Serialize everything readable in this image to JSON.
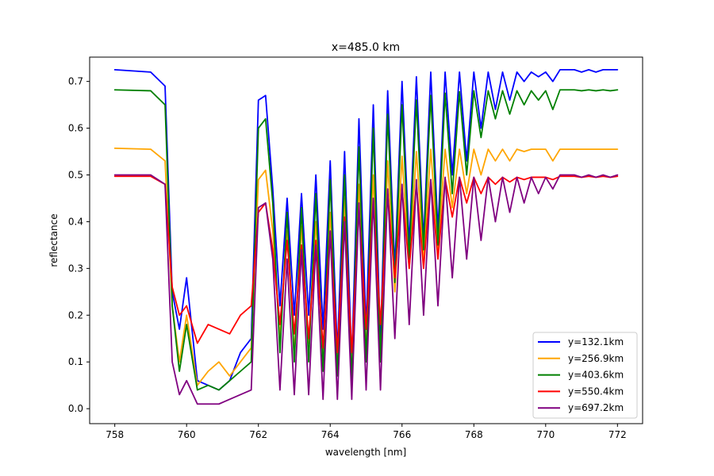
{
  "chart_data": {
    "type": "line",
    "title": "x=485.0 km",
    "xlabel": "wavelength [nm]",
    "ylabel": "reflectance",
    "xlim": [
      757.3,
      772.7
    ],
    "ylim": [
      -0.032,
      0.752
    ],
    "xticks": [
      758,
      760,
      762,
      764,
      766,
      768,
      770,
      772
    ],
    "xtick_labels": [
      "758",
      "760",
      "762",
      "764",
      "766",
      "768",
      "770",
      "772"
    ],
    "yticks": [
      0.0,
      0.1,
      0.2,
      0.3,
      0.4,
      0.5,
      0.6,
      0.7
    ],
    "ytick_labels": [
      "0.0",
      "0.1",
      "0.2",
      "0.3",
      "0.4",
      "0.5",
      "0.6",
      "0.7"
    ],
    "grid": false,
    "legend_position": "lower-right",
    "x": [
      758.0,
      759.0,
      759.4,
      759.6,
      759.8,
      760.0,
      760.3,
      760.6,
      760.9,
      761.2,
      761.5,
      761.8,
      762.0,
      762.2,
      762.4,
      762.6,
      762.8,
      763.0,
      763.2,
      763.4,
      763.6,
      763.8,
      764.0,
      764.2,
      764.4,
      764.6,
      764.8,
      765.0,
      765.2,
      765.4,
      765.6,
      765.8,
      766.0,
      766.2,
      766.4,
      766.6,
      766.8,
      767.0,
      767.2,
      767.4,
      767.6,
      767.8,
      768.0,
      768.2,
      768.4,
      768.6,
      768.8,
      769.0,
      769.2,
      769.4,
      769.6,
      769.8,
      770.0,
      770.2,
      770.4,
      770.6,
      770.8,
      771.0,
      771.2,
      771.4,
      771.6,
      771.8,
      772.0
    ],
    "series": [
      {
        "name": "y=132.1km",
        "color": "#0000ff",
        "values": [
          0.725,
          0.72,
          0.69,
          0.25,
          0.17,
          0.28,
          0.06,
          0.05,
          0.04,
          0.06,
          0.12,
          0.15,
          0.66,
          0.67,
          0.47,
          0.22,
          0.45,
          0.2,
          0.46,
          0.2,
          0.5,
          0.17,
          0.53,
          0.12,
          0.55,
          0.1,
          0.62,
          0.17,
          0.65,
          0.14,
          0.68,
          0.3,
          0.7,
          0.35,
          0.71,
          0.36,
          0.72,
          0.38,
          0.72,
          0.5,
          0.72,
          0.53,
          0.72,
          0.6,
          0.72,
          0.64,
          0.72,
          0.66,
          0.72,
          0.7,
          0.72,
          0.71,
          0.72,
          0.7,
          0.725,
          0.725,
          0.725,
          0.72,
          0.725,
          0.72,
          0.725,
          0.725,
          0.725
        ]
      },
      {
        "name": "y=256.9km",
        "color": "#ffa500",
        "values": [
          0.557,
          0.555,
          0.53,
          0.22,
          0.1,
          0.2,
          0.05,
          0.08,
          0.1,
          0.07,
          0.1,
          0.13,
          0.49,
          0.51,
          0.38,
          0.15,
          0.38,
          0.12,
          0.39,
          0.14,
          0.4,
          0.12,
          0.42,
          0.1,
          0.45,
          0.08,
          0.48,
          0.12,
          0.5,
          0.1,
          0.53,
          0.25,
          0.54,
          0.3,
          0.55,
          0.32,
          0.555,
          0.34,
          0.555,
          0.43,
          0.555,
          0.46,
          0.555,
          0.5,
          0.555,
          0.53,
          0.555,
          0.53,
          0.555,
          0.55,
          0.555,
          0.555,
          0.555,
          0.53,
          0.555,
          0.555,
          0.555,
          0.555,
          0.555,
          0.555,
          0.555,
          0.555,
          0.555
        ]
      },
      {
        "name": "y=403.6km",
        "color": "#008000",
        "values": [
          0.682,
          0.68,
          0.65,
          0.22,
          0.08,
          0.18,
          0.04,
          0.05,
          0.04,
          0.06,
          0.08,
          0.1,
          0.6,
          0.62,
          0.44,
          0.12,
          0.42,
          0.1,
          0.43,
          0.1,
          0.46,
          0.08,
          0.49,
          0.07,
          0.5,
          0.06,
          0.56,
          0.1,
          0.6,
          0.1,
          0.63,
          0.27,
          0.65,
          0.32,
          0.66,
          0.34,
          0.67,
          0.35,
          0.675,
          0.46,
          0.678,
          0.5,
          0.68,
          0.58,
          0.68,
          0.62,
          0.68,
          0.63,
          0.68,
          0.65,
          0.68,
          0.66,
          0.68,
          0.64,
          0.682,
          0.682,
          0.682,
          0.68,
          0.682,
          0.68,
          0.682,
          0.68,
          0.682
        ]
      },
      {
        "name": "y=550.4km",
        "color": "#ff0000",
        "values": [
          0.497,
          0.497,
          0.48,
          0.26,
          0.2,
          0.22,
          0.14,
          0.18,
          0.17,
          0.16,
          0.2,
          0.22,
          0.42,
          0.44,
          0.34,
          0.18,
          0.36,
          0.16,
          0.35,
          0.15,
          0.36,
          0.13,
          0.38,
          0.12,
          0.41,
          0.12,
          0.43,
          0.17,
          0.45,
          0.18,
          0.46,
          0.28,
          0.47,
          0.3,
          0.48,
          0.3,
          0.49,
          0.32,
          0.492,
          0.41,
          0.495,
          0.44,
          0.495,
          0.46,
          0.495,
          0.48,
          0.495,
          0.485,
          0.495,
          0.49,
          0.495,
          0.495,
          0.495,
          0.49,
          0.497,
          0.497,
          0.497,
          0.495,
          0.497,
          0.495,
          0.497,
          0.495,
          0.497
        ]
      },
      {
        "name": "y=697.2km",
        "color": "#800080",
        "values": [
          0.5,
          0.5,
          0.48,
          0.1,
          0.03,
          0.06,
          0.01,
          0.01,
          0.01,
          0.02,
          0.03,
          0.04,
          0.43,
          0.44,
          0.32,
          0.04,
          0.32,
          0.03,
          0.34,
          0.03,
          0.35,
          0.02,
          0.38,
          0.02,
          0.4,
          0.02,
          0.44,
          0.04,
          0.45,
          0.04,
          0.47,
          0.15,
          0.48,
          0.18,
          0.49,
          0.2,
          0.49,
          0.22,
          0.495,
          0.28,
          0.495,
          0.32,
          0.495,
          0.36,
          0.495,
          0.4,
          0.495,
          0.42,
          0.495,
          0.44,
          0.495,
          0.46,
          0.495,
          0.47,
          0.5,
          0.5,
          0.5,
          0.495,
          0.5,
          0.495,
          0.5,
          0.495,
          0.5
        ]
      }
    ]
  }
}
